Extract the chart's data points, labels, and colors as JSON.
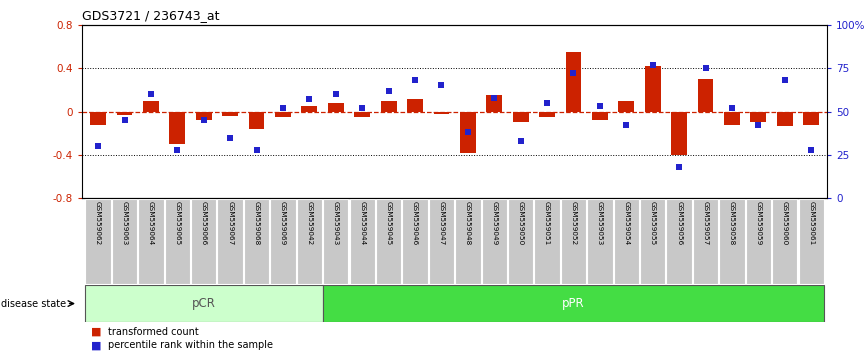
{
  "title": "GDS3721 / 236743_at",
  "samples": [
    "GSM559062",
    "GSM559063",
    "GSM559064",
    "GSM559065",
    "GSM559066",
    "GSM559067",
    "GSM559068",
    "GSM559069",
    "GSM559042",
    "GSM559043",
    "GSM559044",
    "GSM559045",
    "GSM559046",
    "GSM559047",
    "GSM559048",
    "GSM559049",
    "GSM559050",
    "GSM559051",
    "GSM559052",
    "GSM559053",
    "GSM559054",
    "GSM559055",
    "GSM559056",
    "GSM559057",
    "GSM559058",
    "GSM559059",
    "GSM559060",
    "GSM559061"
  ],
  "red_bars": [
    -0.12,
    -0.03,
    0.1,
    -0.3,
    -0.08,
    -0.04,
    -0.16,
    -0.05,
    0.05,
    0.08,
    -0.05,
    0.1,
    0.12,
    -0.02,
    -0.38,
    0.15,
    -0.1,
    -0.05,
    0.55,
    -0.08,
    0.1,
    0.42,
    -0.4,
    0.3,
    -0.12,
    -0.1,
    -0.13,
    -0.12
  ],
  "blue_dots": [
    30,
    45,
    60,
    28,
    45,
    35,
    28,
    52,
    57,
    60,
    52,
    62,
    68,
    65,
    38,
    58,
    33,
    55,
    72,
    53,
    42,
    77,
    18,
    75,
    52,
    42,
    68,
    28
  ],
  "pCR_count": 9,
  "pPR_count": 19,
  "ylim": [
    -0.8,
    0.8
  ],
  "bar_color": "#cc2200",
  "dot_color": "#2222cc",
  "pCR_color": "#ccffcc",
  "pPR_color": "#44dd44",
  "tick_bg_color": "#c8c8c8",
  "legend_red": "transformed count",
  "legend_blue": "percentile rank within the sample",
  "label_disease": "disease state"
}
